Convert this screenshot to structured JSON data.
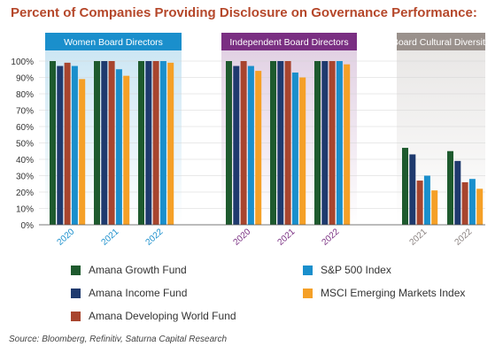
{
  "title": "Percent of Companies Providing Disclosure on Governance Performance:",
  "source": "Source: Bloomberg, Refinitiv, Saturna Capital Research",
  "chart_data": {
    "type": "bar",
    "ylim": [
      0,
      100
    ],
    "yticks": [
      "0%",
      "10%",
      "20%",
      "30%",
      "40%",
      "50%",
      "60%",
      "70%",
      "80%",
      "90%",
      "100%"
    ],
    "series": [
      {
        "name": "Amana Growth Fund",
        "color": "#1e5a2e"
      },
      {
        "name": "Amana Income Fund",
        "color": "#1f3a6e"
      },
      {
        "name": "Amana Developing World Fund",
        "color": "#a8452e"
      },
      {
        "name": "S&P 500 Index",
        "color": "#1a8fcc"
      },
      {
        "name": "MSCI Emerging Markets Index",
        "color": "#f5a027"
      }
    ],
    "panels": [
      {
        "label": "Women Board Directors",
        "header_color": "#1a8fcc",
        "tick_color": "#1a8fcc",
        "groups": [
          {
            "year": "2020",
            "values": [
              100,
              97,
              99,
              97,
              89
            ]
          },
          {
            "year": "2021",
            "values": [
              100,
              100,
              100,
              95,
              91
            ]
          },
          {
            "year": "2022",
            "values": [
              100,
              100,
              100,
              100,
              99
            ]
          }
        ]
      },
      {
        "label": "Independent Board Directors",
        "header_color": "#7a2f82",
        "tick_color": "#7a2f82",
        "groups": [
          {
            "year": "2020",
            "values": [
              100,
              97,
              100,
              97,
              94
            ]
          },
          {
            "year": "2021",
            "values": [
              100,
              100,
              100,
              93,
              90
            ]
          },
          {
            "year": "2022",
            "values": [
              100,
              100,
              100,
              100,
              98
            ]
          }
        ]
      },
      {
        "label": "Board Cultural Diversity",
        "header_color": "#9a918c",
        "tick_color": "#8a8280",
        "groups": [
          {
            "year": "2021",
            "values": [
              47,
              43,
              27,
              30,
              21
            ]
          },
          {
            "year": "2022",
            "values": [
              45,
              39,
              26,
              28,
              22
            ]
          }
        ]
      }
    ]
  }
}
